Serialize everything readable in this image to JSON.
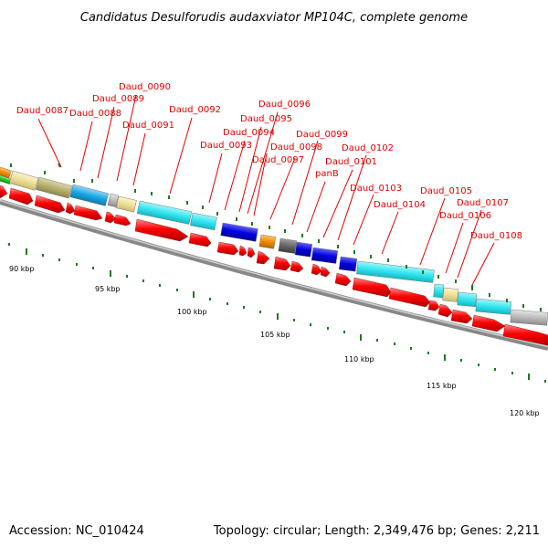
{
  "title": "Candidatus Desulforudis audaxviator MP104C, complete genome",
  "footer": {
    "accession": "Accession: NC_010424",
    "summary": "Topology: circular; Length: 2,349,476 bp; Genes: 2,211"
  },
  "kbp_labels": [
    "90 kbp",
    "95 kbp",
    "100 kbp",
    "105 kbp",
    "110 kbp",
    "115 kbp",
    "120 kbp"
  ],
  "gene_labels": [
    "Daud_0087",
    "Daud_0088",
    "Daud_0089",
    "Daud_0090",
    "Daud_0091",
    "Daud_0092",
    "Daud_0093",
    "Daud_0094",
    "Daud_0095",
    "Daud_0096",
    "Daud_0097",
    "Daud_0098",
    "Daud_0099",
    "panB",
    "Daud_0101",
    "Daud_0102",
    "Daud_0103",
    "Daud_0104",
    "Daud_0105",
    "Daud_0106",
    "Daud_0107",
    "Daud_0108"
  ],
  "colors": {
    "gene_label": "#e00000",
    "cds": "#ff0000",
    "tick": "#1a7a1a",
    "backbone": "#888888",
    "cog_cyan": "#33e5f0",
    "cog_blue": "#0000dd",
    "cog_khaki": "#b8b070",
    "cog_lightyellow": "#eee097",
    "cog_skyblue": "#1aa8e6",
    "cog_orange": "#f28a00",
    "cog_gray": "#bbbbbb",
    "cog_darkgray": "#666666"
  }
}
